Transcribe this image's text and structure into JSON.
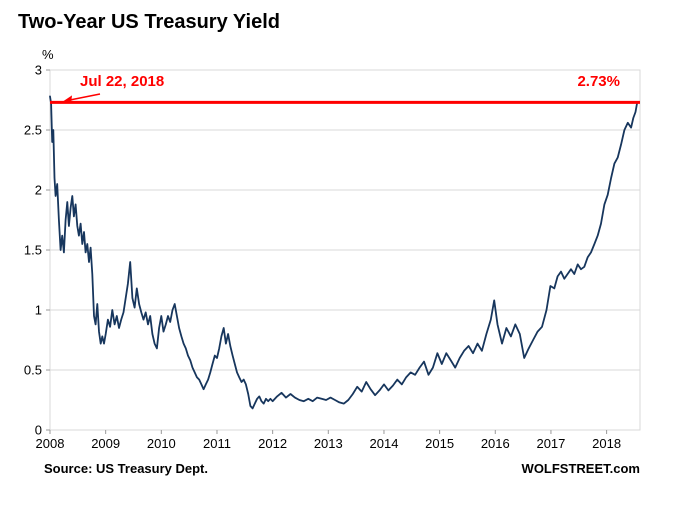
{
  "title": "Two-Year US Treasury Yield",
  "y_unit": "%",
  "annotations": {
    "date_label": "Jul 22, 2018",
    "value_label": "2.73%"
  },
  "footer": {
    "source": "Source: US Treasury Dept.",
    "brand": "WOLFSTREET.com"
  },
  "colors": {
    "line": "#17365d",
    "reference": "#ff0000",
    "grid": "#d9d9d9",
    "tick": "#9a9a9a",
    "text": "#000000"
  },
  "chart_data": {
    "type": "line",
    "title": "Two-Year US Treasury Yield",
    "xlabel": "",
    "ylabel": "%",
    "ylim": [
      0,
      3
    ],
    "xlim": [
      2008,
      2018.6
    ],
    "y_ticks": [
      0,
      0.5,
      1,
      1.5,
      2,
      2.5,
      3
    ],
    "x_ticks": [
      2008,
      2009,
      2010,
      2011,
      2012,
      2013,
      2014,
      2015,
      2016,
      2017,
      2018
    ],
    "grid": "horizontal",
    "legend": "none",
    "reference_line": {
      "value": 2.73,
      "label": "2.73%",
      "date": "Jul 22, 2018",
      "color": "#ff0000"
    },
    "series": [
      {
        "name": "Two-Year US Treasury Yield (%)",
        "points": [
          [
            2008.0,
            2.78
          ],
          [
            2008.02,
            2.72
          ],
          [
            2008.04,
            2.4
          ],
          [
            2008.06,
            2.5
          ],
          [
            2008.08,
            2.1
          ],
          [
            2008.1,
            1.95
          ],
          [
            2008.13,
            2.05
          ],
          [
            2008.16,
            1.75
          ],
          [
            2008.19,
            1.5
          ],
          [
            2008.22,
            1.62
          ],
          [
            2008.25,
            1.48
          ],
          [
            2008.28,
            1.75
          ],
          [
            2008.31,
            1.9
          ],
          [
            2008.34,
            1.7
          ],
          [
            2008.37,
            1.85
          ],
          [
            2008.4,
            1.95
          ],
          [
            2008.43,
            1.78
          ],
          [
            2008.46,
            1.88
          ],
          [
            2008.49,
            1.7
          ],
          [
            2008.52,
            1.62
          ],
          [
            2008.55,
            1.72
          ],
          [
            2008.58,
            1.55
          ],
          [
            2008.61,
            1.65
          ],
          [
            2008.64,
            1.48
          ],
          [
            2008.67,
            1.55
          ],
          [
            2008.7,
            1.4
          ],
          [
            2008.73,
            1.52
          ],
          [
            2008.76,
            1.3
          ],
          [
            2008.79,
            0.95
          ],
          [
            2008.82,
            0.88
          ],
          [
            2008.85,
            1.05
          ],
          [
            2008.88,
            0.82
          ],
          [
            2008.91,
            0.72
          ],
          [
            2008.94,
            0.78
          ],
          [
            2008.97,
            0.72
          ],
          [
            2009.0,
            0.8
          ],
          [
            2009.04,
            0.92
          ],
          [
            2009.08,
            0.86
          ],
          [
            2009.12,
            1.0
          ],
          [
            2009.16,
            0.88
          ],
          [
            2009.2,
            0.95
          ],
          [
            2009.24,
            0.85
          ],
          [
            2009.28,
            0.92
          ],
          [
            2009.32,
            0.98
          ],
          [
            2009.36,
            1.1
          ],
          [
            2009.4,
            1.22
          ],
          [
            2009.44,
            1.4
          ],
          [
            2009.48,
            1.1
          ],
          [
            2009.52,
            1.02
          ],
          [
            2009.56,
            1.18
          ],
          [
            2009.6,
            1.05
          ],
          [
            2009.64,
            0.98
          ],
          [
            2009.68,
            0.92
          ],
          [
            2009.72,
            0.98
          ],
          [
            2009.76,
            0.88
          ],
          [
            2009.8,
            0.95
          ],
          [
            2009.84,
            0.8
          ],
          [
            2009.88,
            0.72
          ],
          [
            2009.92,
            0.68
          ],
          [
            2009.96,
            0.85
          ],
          [
            2010.0,
            0.95
          ],
          [
            2010.04,
            0.82
          ],
          [
            2010.08,
            0.88
          ],
          [
            2010.12,
            0.95
          ],
          [
            2010.16,
            0.9
          ],
          [
            2010.2,
            1.0
          ],
          [
            2010.24,
            1.05
          ],
          [
            2010.28,
            0.95
          ],
          [
            2010.32,
            0.85
          ],
          [
            2010.36,
            0.78
          ],
          [
            2010.4,
            0.72
          ],
          [
            2010.44,
            0.68
          ],
          [
            2010.48,
            0.62
          ],
          [
            2010.52,
            0.58
          ],
          [
            2010.56,
            0.52
          ],
          [
            2010.6,
            0.48
          ],
          [
            2010.64,
            0.44
          ],
          [
            2010.68,
            0.42
          ],
          [
            2010.72,
            0.38
          ],
          [
            2010.76,
            0.34
          ],
          [
            2010.8,
            0.38
          ],
          [
            2010.84,
            0.42
          ],
          [
            2010.88,
            0.48
          ],
          [
            2010.92,
            0.55
          ],
          [
            2010.96,
            0.62
          ],
          [
            2011.0,
            0.6
          ],
          [
            2011.04,
            0.68
          ],
          [
            2011.08,
            0.78
          ],
          [
            2011.12,
            0.85
          ],
          [
            2011.16,
            0.72
          ],
          [
            2011.2,
            0.8
          ],
          [
            2011.24,
            0.7
          ],
          [
            2011.28,
            0.62
          ],
          [
            2011.32,
            0.55
          ],
          [
            2011.36,
            0.48
          ],
          [
            2011.4,
            0.44
          ],
          [
            2011.44,
            0.4
          ],
          [
            2011.48,
            0.42
          ],
          [
            2011.52,
            0.38
          ],
          [
            2011.56,
            0.3
          ],
          [
            2011.6,
            0.2
          ],
          [
            2011.64,
            0.18
          ],
          [
            2011.68,
            0.22
          ],
          [
            2011.72,
            0.26
          ],
          [
            2011.76,
            0.28
          ],
          [
            2011.8,
            0.24
          ],
          [
            2011.84,
            0.22
          ],
          [
            2011.88,
            0.26
          ],
          [
            2011.92,
            0.24
          ],
          [
            2011.96,
            0.26
          ],
          [
            2012.0,
            0.24
          ],
          [
            2012.08,
            0.28
          ],
          [
            2012.16,
            0.31
          ],
          [
            2012.24,
            0.27
          ],
          [
            2012.32,
            0.3
          ],
          [
            2012.4,
            0.27
          ],
          [
            2012.48,
            0.25
          ],
          [
            2012.56,
            0.24
          ],
          [
            2012.64,
            0.26
          ],
          [
            2012.72,
            0.24
          ],
          [
            2012.8,
            0.27
          ],
          [
            2012.88,
            0.26
          ],
          [
            2012.96,
            0.25
          ],
          [
            2013.04,
            0.27
          ],
          [
            2013.12,
            0.25
          ],
          [
            2013.2,
            0.23
          ],
          [
            2013.28,
            0.22
          ],
          [
            2013.36,
            0.25
          ],
          [
            2013.44,
            0.3
          ],
          [
            2013.52,
            0.36
          ],
          [
            2013.6,
            0.32
          ],
          [
            2013.68,
            0.4
          ],
          [
            2013.76,
            0.34
          ],
          [
            2013.84,
            0.29
          ],
          [
            2013.92,
            0.33
          ],
          [
            2014.0,
            0.38
          ],
          [
            2014.08,
            0.33
          ],
          [
            2014.16,
            0.37
          ],
          [
            2014.24,
            0.42
          ],
          [
            2014.32,
            0.38
          ],
          [
            2014.4,
            0.44
          ],
          [
            2014.48,
            0.48
          ],
          [
            2014.56,
            0.46
          ],
          [
            2014.64,
            0.52
          ],
          [
            2014.72,
            0.57
          ],
          [
            2014.8,
            0.46
          ],
          [
            2014.88,
            0.52
          ],
          [
            2014.96,
            0.64
          ],
          [
            2015.04,
            0.55
          ],
          [
            2015.12,
            0.64
          ],
          [
            2015.2,
            0.58
          ],
          [
            2015.28,
            0.52
          ],
          [
            2015.36,
            0.6
          ],
          [
            2015.44,
            0.66
          ],
          [
            2015.52,
            0.7
          ],
          [
            2015.6,
            0.64
          ],
          [
            2015.68,
            0.72
          ],
          [
            2015.76,
            0.66
          ],
          [
            2015.84,
            0.8
          ],
          [
            2015.92,
            0.92
          ],
          [
            2015.98,
            1.08
          ],
          [
            2016.04,
            0.88
          ],
          [
            2016.12,
            0.72
          ],
          [
            2016.2,
            0.85
          ],
          [
            2016.28,
            0.78
          ],
          [
            2016.36,
            0.88
          ],
          [
            2016.44,
            0.8
          ],
          [
            2016.52,
            0.6
          ],
          [
            2016.6,
            0.68
          ],
          [
            2016.68,
            0.75
          ],
          [
            2016.76,
            0.82
          ],
          [
            2016.84,
            0.86
          ],
          [
            2016.92,
            1.0
          ],
          [
            2016.99,
            1.2
          ],
          [
            2017.06,
            1.18
          ],
          [
            2017.12,
            1.28
          ],
          [
            2017.18,
            1.32
          ],
          [
            2017.24,
            1.26
          ],
          [
            2017.3,
            1.3
          ],
          [
            2017.36,
            1.34
          ],
          [
            2017.42,
            1.3
          ],
          [
            2017.48,
            1.38
          ],
          [
            2017.54,
            1.34
          ],
          [
            2017.6,
            1.36
          ],
          [
            2017.66,
            1.44
          ],
          [
            2017.72,
            1.48
          ],
          [
            2017.78,
            1.55
          ],
          [
            2017.84,
            1.62
          ],
          [
            2017.9,
            1.72
          ],
          [
            2017.96,
            1.88
          ],
          [
            2018.02,
            1.96
          ],
          [
            2018.08,
            2.1
          ],
          [
            2018.14,
            2.22
          ],
          [
            2018.2,
            2.27
          ],
          [
            2018.26,
            2.38
          ],
          [
            2018.32,
            2.5
          ],
          [
            2018.38,
            2.56
          ],
          [
            2018.44,
            2.52
          ],
          [
            2018.48,
            2.6
          ],
          [
            2018.52,
            2.65
          ],
          [
            2018.55,
            2.73
          ]
        ]
      }
    ]
  }
}
